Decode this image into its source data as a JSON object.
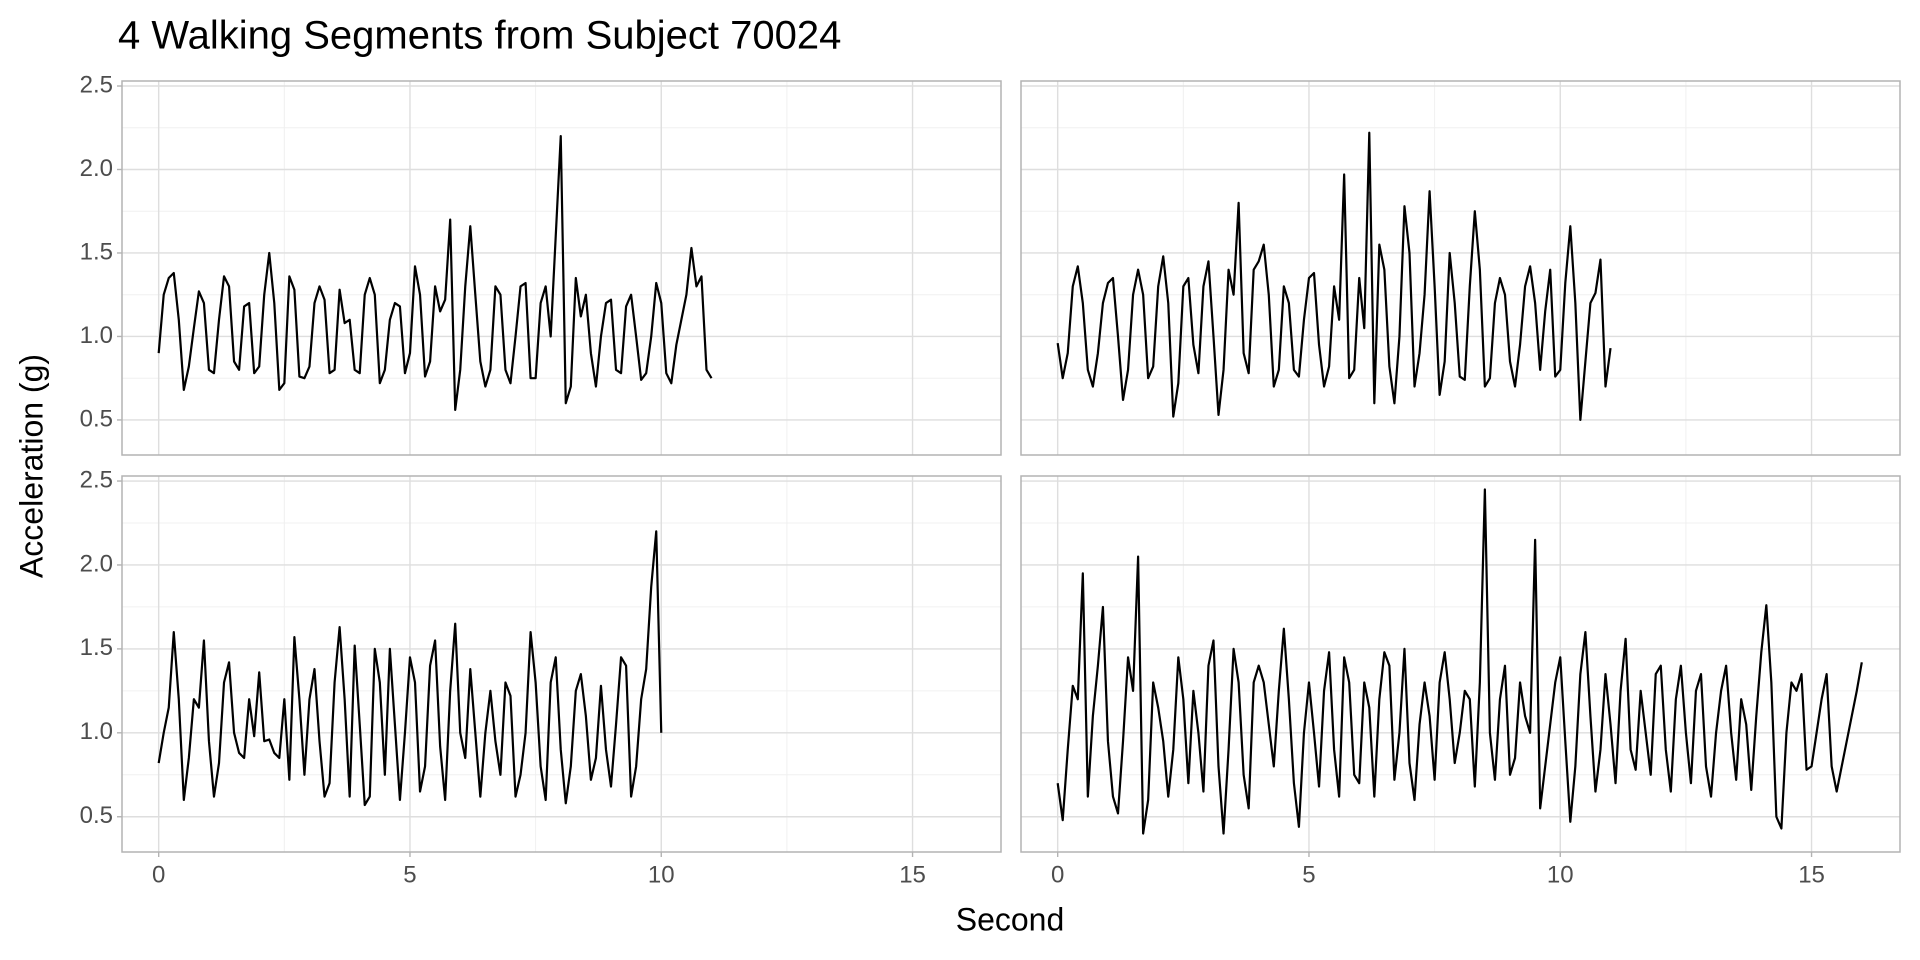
{
  "chart_data": {
    "type": "line",
    "title": "4 Walking Segments from Subject 70024",
    "x_label": "Second",
    "y_label": "Acceleration (g)",
    "color": "#000000",
    "grid": true,
    "xlim": [
      -0.73,
      16.76
    ],
    "xticks": [
      0,
      5,
      10,
      15
    ],
    "ylim": [
      0.29,
      2.53
    ],
    "yticks": [
      0.5,
      {
        "value": 1,
        "label": "1.0"
      },
      1.5,
      {
        "value": 2,
        "label": "2.0"
      },
      2.5
    ],
    "panels": [
      {
        "x": [
          0,
          0.1,
          0.2,
          0.3,
          0.4,
          0.5,
          0.6,
          0.7,
          0.8,
          0.9,
          1,
          1.1,
          1.2,
          1.3,
          1.4,
          1.5,
          1.6,
          1.7,
          1.8,
          1.9,
          2,
          2.1,
          2.2,
          2.3,
          2.4,
          2.5,
          2.6,
          2.7,
          2.8,
          2.9,
          3,
          3.1,
          3.2,
          3.3,
          3.4,
          3.5,
          3.6,
          3.7,
          3.8,
          3.9,
          4,
          4.1,
          4.2,
          4.3,
          4.4,
          4.5,
          4.6,
          4.7,
          4.8,
          4.9,
          5,
          5.1,
          5.2,
          5.3,
          5.4,
          5.5,
          5.6,
          5.7,
          5.8,
          5.9,
          6,
          6.1,
          6.2,
          6.3,
          6.4,
          6.5,
          6.6,
          6.7,
          6.8,
          6.9,
          7,
          7.1,
          7.2,
          7.3,
          7.4,
          7.5,
          7.6,
          7.7,
          7.8,
          7.9,
          8,
          8.1,
          8.2,
          8.3,
          8.4,
          8.5,
          8.6,
          8.7,
          8.8,
          8.9,
          9,
          9.1,
          9.2,
          9.3,
          9.4,
          9.5,
          9.6,
          9.7,
          9.8,
          9.9,
          10,
          10.1,
          10.2,
          10.3,
          10.4,
          10.5,
          10.6,
          10.7,
          10.8,
          10.9,
          11
        ],
        "values": [
          0.9,
          1.25,
          1.35,
          1.38,
          1.1,
          0.68,
          0.82,
          1.05,
          1.27,
          1.2,
          0.8,
          0.78,
          1.1,
          1.36,
          1.3,
          0.85,
          0.8,
          1.18,
          1.2,
          0.78,
          0.82,
          1.25,
          1.5,
          1.2,
          0.68,
          0.72,
          1.36,
          1.28,
          0.76,
          0.75,
          0.82,
          1.2,
          1.3,
          1.22,
          0.78,
          0.8,
          1.28,
          1.08,
          1.1,
          0.8,
          0.78,
          1.25,
          1.35,
          1.25,
          0.72,
          0.8,
          1.1,
          1.2,
          1.18,
          0.78,
          0.9,
          1.42,
          1.25,
          0.76,
          0.85,
          1.3,
          1.15,
          1.22,
          1.7,
          0.56,
          0.8,
          1.3,
          1.66,
          1.25,
          0.85,
          0.7,
          0.8,
          1.3,
          1.25,
          0.8,
          0.72,
          1.0,
          1.3,
          1.32,
          0.75,
          0.75,
          1.2,
          1.3,
          1.0,
          1.6,
          2.2,
          0.6,
          0.7,
          1.35,
          1.12,
          1.25,
          0.9,
          0.7,
          1.0,
          1.2,
          1.22,
          0.8,
          0.78,
          1.18,
          1.25,
          1.0,
          0.74,
          0.78,
          1.0,
          1.32,
          1.2,
          0.78,
          0.72,
          0.95,
          1.1,
          1.25,
          1.53,
          1.3,
          1.36,
          0.8,
          0.75
        ]
      },
      {
        "x": [
          0,
          0.1,
          0.2,
          0.3,
          0.4,
          0.5,
          0.6,
          0.7,
          0.8,
          0.9,
          1,
          1.1,
          1.2,
          1.3,
          1.4,
          1.5,
          1.6,
          1.7,
          1.8,
          1.9,
          2,
          2.1,
          2.2,
          2.3,
          2.4,
          2.5,
          2.6,
          2.7,
          2.8,
          2.9,
          3,
          3.1,
          3.2,
          3.3,
          3.4,
          3.5,
          3.6,
          3.7,
          3.8,
          3.9,
          4,
          4.1,
          4.2,
          4.3,
          4.4,
          4.5,
          4.6,
          4.7,
          4.8,
          4.9,
          5,
          5.1,
          5.2,
          5.3,
          5.4,
          5.5,
          5.6,
          5.7,
          5.8,
          5.9,
          6,
          6.1,
          6.2,
          6.3,
          6.4,
          6.5,
          6.6,
          6.7,
          6.8,
          6.9,
          7,
          7.1,
          7.2,
          7.3,
          7.4,
          7.5,
          7.6,
          7.7,
          7.8,
          7.9,
          8,
          8.1,
          8.2,
          8.3,
          8.4,
          8.5,
          8.6,
          8.7,
          8.8,
          8.9,
          9,
          9.1,
          9.2,
          9.3,
          9.4,
          9.5,
          9.6,
          9.7,
          9.8,
          9.9,
          10,
          10.1,
          10.2,
          10.3,
          10.4,
          10.5,
          10.6,
          10.7,
          10.8,
          10.9,
          11
        ],
        "values": [
          0.96,
          0.75,
          0.9,
          1.3,
          1.42,
          1.2,
          0.8,
          0.7,
          0.9,
          1.2,
          1.32,
          1.35,
          1.0,
          0.62,
          0.8,
          1.25,
          1.4,
          1.25,
          0.75,
          0.82,
          1.3,
          1.48,
          1.2,
          0.52,
          0.72,
          1.3,
          1.35,
          0.95,
          0.78,
          1.3,
          1.45,
          1.0,
          0.53,
          0.8,
          1.4,
          1.25,
          1.8,
          0.9,
          0.78,
          1.4,
          1.45,
          1.55,
          1.25,
          0.7,
          0.8,
          1.3,
          1.2,
          0.8,
          0.76,
          1.1,
          1.35,
          1.38,
          0.95,
          0.7,
          0.82,
          1.3,
          1.1,
          1.97,
          0.75,
          0.8,
          1.35,
          1.05,
          2.22,
          0.6,
          1.55,
          1.4,
          0.82,
          0.6,
          1.0,
          1.78,
          1.5,
          0.7,
          0.9,
          1.25,
          1.87,
          1.3,
          0.65,
          0.85,
          1.5,
          1.2,
          0.76,
          0.74,
          1.3,
          1.75,
          1.4,
          0.7,
          0.75,
          1.2,
          1.35,
          1.25,
          0.85,
          0.7,
          0.95,
          1.3,
          1.42,
          1.2,
          0.8,
          1.15,
          1.4,
          0.76,
          0.8,
          1.32,
          1.66,
          1.2,
          0.5,
          0.85,
          1.2,
          1.26,
          1.46,
          0.7,
          0.93
        ]
      },
      {
        "x": [
          0,
          0.1,
          0.2,
          0.3,
          0.4,
          0.5,
          0.6,
          0.7,
          0.8,
          0.9,
          1,
          1.1,
          1.2,
          1.3,
          1.4,
          1.5,
          1.6,
          1.7,
          1.8,
          1.9,
          2,
          2.1,
          2.2,
          2.3,
          2.4,
          2.5,
          2.6,
          2.7,
          2.8,
          2.9,
          3,
          3.1,
          3.2,
          3.3,
          3.4,
          3.5,
          3.6,
          3.7,
          3.8,
          3.9,
          4,
          4.1,
          4.2,
          4.3,
          4.4,
          4.5,
          4.6,
          4.7,
          4.8,
          4.9,
          5,
          5.1,
          5.2,
          5.3,
          5.4,
          5.5,
          5.6,
          5.7,
          5.8,
          5.9,
          6,
          6.1,
          6.2,
          6.3,
          6.4,
          6.5,
          6.6,
          6.7,
          6.8,
          6.9,
          7,
          7.1,
          7.2,
          7.3,
          7.4,
          7.5,
          7.6,
          7.7,
          7.8,
          7.9,
          8,
          8.1,
          8.2,
          8.3,
          8.4,
          8.5,
          8.6,
          8.7,
          8.8,
          8.9,
          9,
          9.1,
          9.2,
          9.3,
          9.4,
          9.5,
          9.6,
          9.7,
          9.8,
          9.9,
          10
        ],
        "values": [
          0.82,
          1.0,
          1.15,
          1.6,
          1.2,
          0.6,
          0.85,
          1.2,
          1.15,
          1.55,
          0.95,
          0.62,
          0.82,
          1.3,
          1.42,
          1.0,
          0.88,
          0.85,
          1.2,
          0.98,
          1.36,
          0.95,
          0.96,
          0.88,
          0.85,
          1.2,
          0.72,
          1.57,
          1.2,
          0.75,
          1.2,
          1.38,
          0.95,
          0.62,
          0.7,
          1.3,
          1.63,
          1.2,
          0.62,
          1.52,
          1.05,
          0.57,
          0.62,
          1.5,
          1.3,
          0.75,
          1.5,
          1.05,
          0.6,
          1.0,
          1.45,
          1.3,
          0.65,
          0.8,
          1.4,
          1.55,
          0.92,
          0.6,
          1.25,
          1.65,
          1.0,
          0.85,
          1.38,
          1.0,
          0.62,
          1.0,
          1.25,
          0.95,
          0.75,
          1.3,
          1.22,
          0.62,
          0.75,
          1.0,
          1.6,
          1.3,
          0.8,
          0.6,
          1.3,
          1.45,
          0.9,
          0.58,
          0.8,
          1.25,
          1.35,
          1.1,
          0.72,
          0.85,
          1.28,
          0.9,
          0.68,
          1.05,
          1.45,
          1.4,
          0.62,
          0.8,
          1.2,
          1.38,
          1.87,
          2.2,
          1.0
        ]
      },
      {
        "x": [
          0,
          0.1,
          0.2,
          0.3,
          0.4,
          0.5,
          0.6,
          0.7,
          0.8,
          0.9,
          1,
          1.1,
          1.2,
          1.3,
          1.4,
          1.5,
          1.6,
          1.7,
          1.8,
          1.9,
          2,
          2.1,
          2.2,
          2.3,
          2.4,
          2.5,
          2.6,
          2.7,
          2.8,
          2.9,
          3,
          3.1,
          3.2,
          3.3,
          3.4,
          3.5,
          3.6,
          3.7,
          3.8,
          3.9,
          4,
          4.1,
          4.2,
          4.3,
          4.4,
          4.5,
          4.6,
          4.7,
          4.8,
          4.9,
          5,
          5.1,
          5.2,
          5.3,
          5.4,
          5.5,
          5.6,
          5.7,
          5.8,
          5.9,
          6,
          6.1,
          6.2,
          6.3,
          6.4,
          6.5,
          6.6,
          6.7,
          6.8,
          6.9,
          7,
          7.1,
          7.2,
          7.3,
          7.4,
          7.5,
          7.6,
          7.7,
          7.8,
          7.9,
          8,
          8.1,
          8.2,
          8.3,
          8.4,
          8.5,
          8.6,
          8.7,
          8.8,
          8.9,
          9,
          9.1,
          9.2,
          9.3,
          9.4,
          9.5,
          9.6,
          9.7,
          9.8,
          9.9,
          10,
          10.1,
          10.2,
          10.3,
          10.4,
          10.5,
          10.6,
          10.7,
          10.8,
          10.9,
          11,
          11.1,
          11.2,
          11.3,
          11.4,
          11.5,
          11.6,
          11.7,
          11.8,
          11.9,
          12,
          12.1,
          12.2,
          12.3,
          12.4,
          12.5,
          12.6,
          12.7,
          12.8,
          12.9,
          13,
          13.1,
          13.2,
          13.3,
          13.4,
          13.5,
          13.6,
          13.7,
          13.8,
          13.9,
          14,
          14.1,
          14.2,
          14.3,
          14.4,
          14.5,
          14.6,
          14.7,
          14.8,
          14.9,
          15,
          15.1,
          15.2,
          15.3,
          15.4,
          15.5,
          15.6,
          15.7,
          15.8,
          15.9,
          16
        ],
        "values": [
          0.7,
          0.48,
          0.9,
          1.28,
          1.2,
          1.95,
          0.62,
          1.1,
          1.4,
          1.75,
          0.95,
          0.62,
          0.52,
          0.95,
          1.45,
          1.25,
          2.05,
          0.4,
          0.6,
          1.3,
          1.15,
          0.95,
          0.62,
          0.9,
          1.45,
          1.2,
          0.7,
          1.25,
          1.0,
          0.65,
          1.4,
          1.55,
          0.8,
          0.4,
          0.9,
          1.5,
          1.3,
          0.75,
          0.55,
          1.3,
          1.4,
          1.3,
          1.05,
          0.8,
          1.25,
          1.62,
          1.2,
          0.7,
          0.44,
          1.0,
          1.3,
          1.0,
          0.68,
          1.25,
          1.48,
          0.9,
          0.62,
          1.45,
          1.3,
          0.75,
          0.7,
          1.3,
          1.15,
          0.62,
          1.2,
          1.48,
          1.4,
          0.72,
          1.0,
          1.5,
          0.82,
          0.6,
          1.05,
          1.3,
          1.1,
          0.72,
          1.3,
          1.48,
          1.2,
          0.82,
          1.0,
          1.25,
          1.2,
          0.68,
          1.3,
          2.45,
          1.0,
          0.72,
          1.2,
          1.4,
          0.75,
          0.85,
          1.3,
          1.1,
          1.0,
          2.15,
          0.55,
          0.8,
          1.05,
          1.3,
          1.45,
          0.95,
          0.47,
          0.8,
          1.35,
          1.6,
          1.1,
          0.65,
          0.9,
          1.35,
          1.05,
          0.7,
          1.25,
          1.56,
          0.9,
          0.78,
          1.25,
          1.0,
          0.75,
          1.35,
          1.4,
          0.9,
          0.65,
          1.2,
          1.4,
          1.0,
          0.7,
          1.25,
          1.35,
          0.8,
          0.62,
          1.0,
          1.25,
          1.4,
          1.0,
          0.72,
          1.2,
          1.05,
          0.66,
          1.1,
          1.48,
          1.76,
          1.3,
          0.5,
          0.43,
          1.0,
          1.3,
          1.25,
          1.35,
          0.78,
          0.8,
          1.0,
          1.2,
          1.35,
          0.8,
          0.65,
          0.8,
          0.95,
          1.1,
          1.25,
          1.42
        ]
      }
    ]
  }
}
